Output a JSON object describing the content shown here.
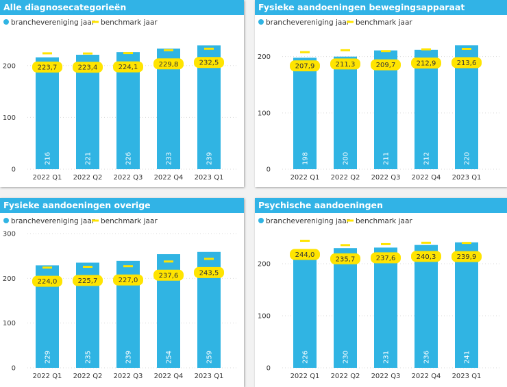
{
  "colors": {
    "header_bg": "#31b3e6",
    "bar": "#30b4e3",
    "benchmark": "#ffe400",
    "grid": "#d9d9d9"
  },
  "legend": {
    "series1": "branchevereniging jaar",
    "series2": "benchmark jaar"
  },
  "chart_data": [
    {
      "type": "bar",
      "title": "Alle diagnosecategorieën",
      "categories": [
        "2022 Q1",
        "2022 Q2",
        "2022 Q3",
        "2022 Q4",
        "2023 Q1"
      ],
      "ylim": [
        0,
        250
      ],
      "yticks": [
        0,
        100,
        200
      ],
      "legend_position": "top-left",
      "grid": true,
      "series": [
        {
          "name": "branchevereniging jaar",
          "values": [
            216,
            221,
            226,
            233,
            239
          ],
          "value_labels": [
            "216",
            "221",
            "226",
            "233",
            "239"
          ]
        },
        {
          "name": "benchmark jaar",
          "values": [
            223.7,
            223.4,
            224.1,
            229.8,
            232.5
          ],
          "value_labels": [
            "223,7",
            "223,4",
            "224,1",
            "229,8",
            "232,5"
          ]
        }
      ]
    },
    {
      "type": "bar",
      "title": "Fysieke aandoeningen bewegingsapparaat",
      "categories": [
        "2022 Q1",
        "2022 Q2",
        "2022 Q3",
        "2022 Q4",
        "2023 Q1"
      ],
      "ylim": [
        0,
        230
      ],
      "yticks": [
        0,
        100,
        200
      ],
      "legend_position": "top-left",
      "grid": true,
      "series": [
        {
          "name": "branchevereniging jaar",
          "values": [
            198,
            200,
            211,
            212,
            220
          ],
          "value_labels": [
            "198",
            "200",
            "211",
            "212",
            "220"
          ]
        },
        {
          "name": "benchmark jaar",
          "values": [
            207.9,
            211.3,
            209.7,
            212.9,
            213.6
          ],
          "value_labels": [
            "207,9",
            "211,3",
            "209,7",
            "212,9",
            "213,6"
          ]
        }
      ]
    },
    {
      "type": "bar",
      "title": "Fysieke aandoeningen overige",
      "categories": [
        "2022 Q1",
        "2022 Q2",
        "2022 Q3",
        "2022 Q4",
        "2023 Q1"
      ],
      "ylim": [
        0,
        300
      ],
      "yticks": [
        0,
        100,
        200,
        300
      ],
      "legend_position": "top-left",
      "grid": true,
      "series": [
        {
          "name": "branchevereniging jaar",
          "values": [
            229,
            235,
            239,
            254,
            259
          ],
          "value_labels": [
            "229",
            "235",
            "239",
            "254",
            "259"
          ]
        },
        {
          "name": "benchmark jaar",
          "values": [
            224.0,
            225.7,
            227.0,
            237.6,
            243.5
          ],
          "value_labels": [
            "224,0",
            "225,7",
            "227,0",
            "237,6",
            "243,5"
          ]
        }
      ]
    },
    {
      "type": "bar",
      "title": "Psychische aandoeningen",
      "categories": [
        "2022 Q1",
        "2022 Q2",
        "2022 Q3",
        "2022 Q4",
        "2023 Q1"
      ],
      "ylim": [
        0,
        250
      ],
      "yticks": [
        0,
        100,
        200
      ],
      "legend_position": "top-left",
      "grid": true,
      "series": [
        {
          "name": "branchevereniging jaar",
          "values": [
            226,
            230,
            231,
            236,
            241
          ],
          "value_labels": [
            "226",
            "230",
            "231",
            "236",
            "241"
          ]
        },
        {
          "name": "benchmark jaar",
          "values": [
            244.0,
            235.7,
            237.6,
            240.3,
            239.9
          ],
          "value_labels": [
            "244,0",
            "235,7",
            "237,6",
            "240,3",
            "239,9"
          ]
        }
      ]
    }
  ]
}
